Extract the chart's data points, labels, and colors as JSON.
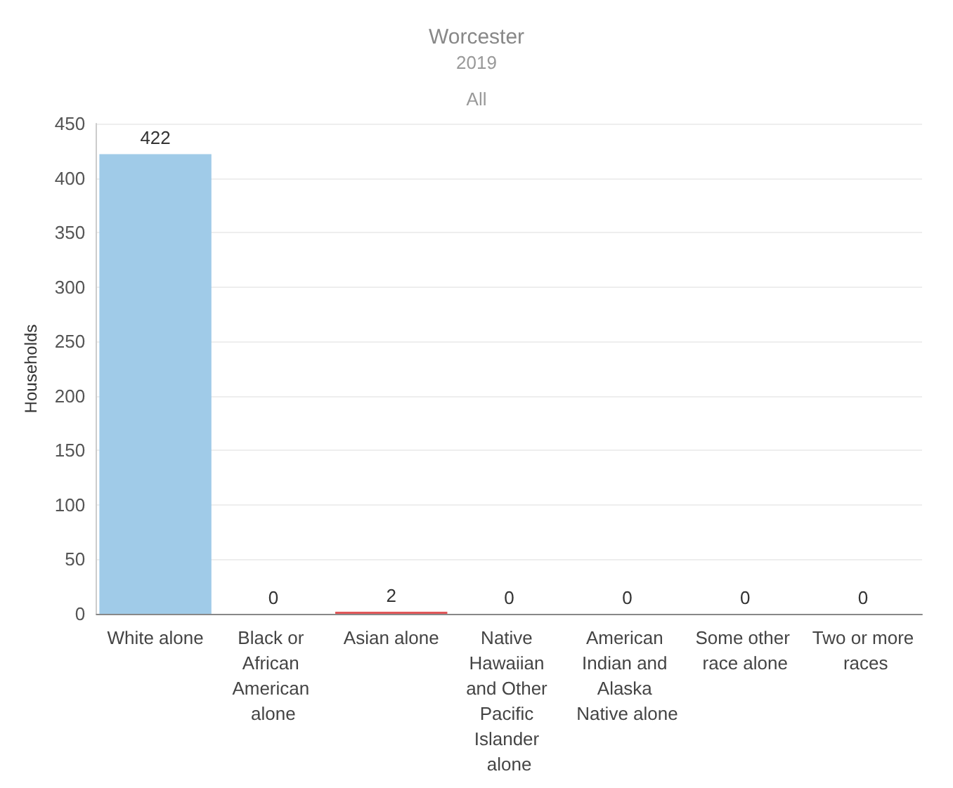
{
  "chart_data": {
    "type": "bar",
    "title": "Worcester",
    "subtitle": "2019",
    "annotations": [
      "All"
    ],
    "ylabel": "Households",
    "categories": [
      "White alone",
      "Black or African American alone",
      "Asian alone",
      "Native Hawaiian and Other Pacific Islander alone",
      "American Indian and Alaska Native alone",
      "Some other race alone",
      "Two or more races"
    ],
    "values": [
      422,
      0,
      2,
      0,
      0,
      0,
      0
    ],
    "colors": [
      "#a0cbe8",
      "#a0cbe8",
      "#e15759",
      "#a0cbe8",
      "#a0cbe8",
      "#a0cbe8",
      "#a0cbe8"
    ],
    "ylim": [
      0,
      450
    ],
    "yticks": [
      0,
      50,
      100,
      150,
      200,
      250,
      300,
      350,
      400,
      450
    ],
    "grid": "y",
    "data_labels": true
  }
}
